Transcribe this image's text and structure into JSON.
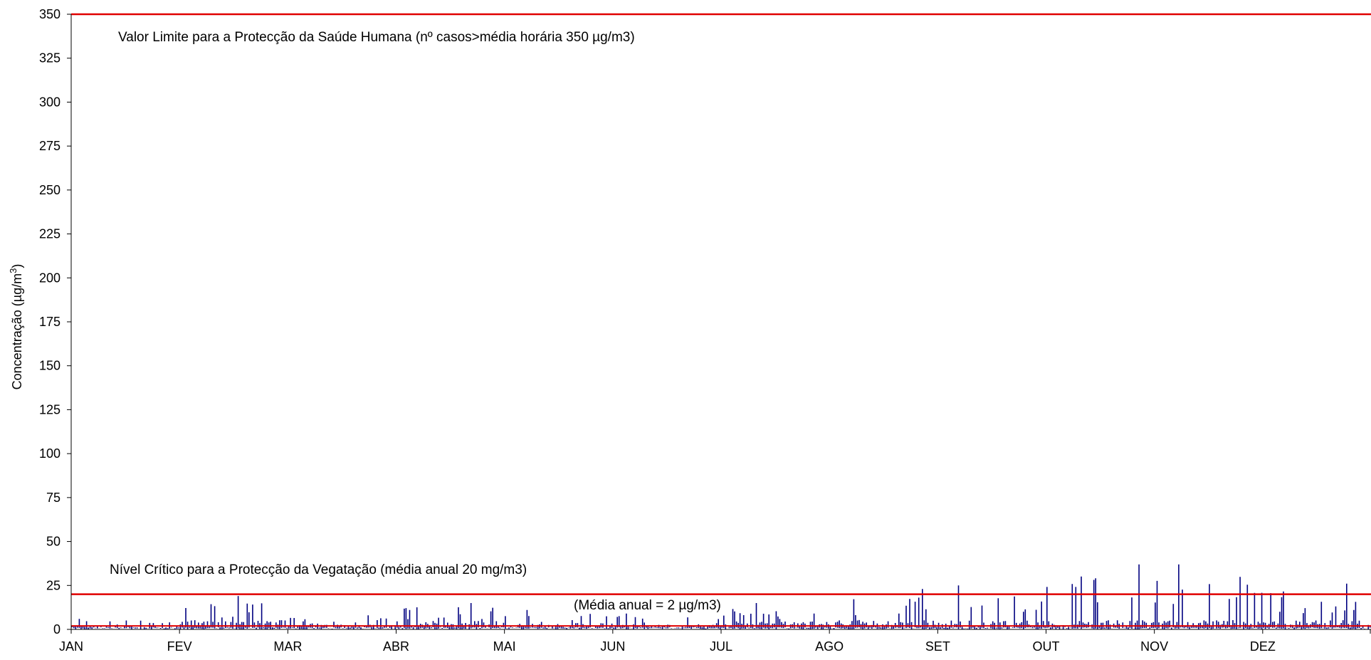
{
  "chart_data": {
    "type": "line",
    "title": "",
    "xlabel": "",
    "ylabel": "Concentração (µg/m3)",
    "ylim": [
      0,
      350
    ],
    "yticks": [
      0,
      25,
      50,
      75,
      100,
      125,
      150,
      175,
      200,
      225,
      250,
      275,
      300,
      325,
      350
    ],
    "categories": [
      "JAN",
      "FEV",
      "MAR",
      "ABR",
      "MAI",
      "JUN",
      "JUL",
      "AGO",
      "SET",
      "OUT",
      "NOV",
      "DEZ"
    ],
    "grid": false,
    "series": [
      {
        "type": "line",
        "color": "#000080",
        "monthly_peaks": [
          {
            "month": "JAN",
            "peak": 6
          },
          {
            "month": "FEV",
            "peak": 19
          },
          {
            "month": "MAR",
            "peak": 8
          },
          {
            "month": "ABR",
            "peak": 15
          },
          {
            "month": "MAI",
            "peak": 11
          },
          {
            "month": "JUN",
            "peak": 9
          },
          {
            "month": "JUL",
            "peak": 15
          },
          {
            "month": "AGO",
            "peak": 23
          },
          {
            "month": "SET",
            "peak": 25
          },
          {
            "month": "OUT",
            "peak": 37
          },
          {
            "month": "NOV",
            "peak": 37
          },
          {
            "month": "DEZ",
            "peak": 26
          }
        ]
      }
    ],
    "reference_lines": [
      {
        "value": 350,
        "color": "#e00000",
        "label": "Valor Limite para a Protecção da Saúde Humana (nº casos>média horária 350 µg/m3)"
      },
      {
        "value": 20,
        "color": "#e00000",
        "label": "Nível Crítico para a Protecção da Vegatação (média anual 20 mg/m3)"
      },
      {
        "value": 2,
        "color": "#e00000",
        "label": "(Média anual = 2 µg/m3)"
      }
    ]
  }
}
